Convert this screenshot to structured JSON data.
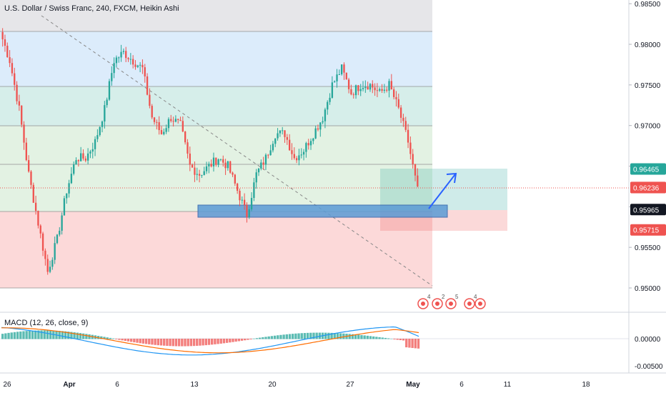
{
  "header": {
    "title": "U.S. Dollar / Swiss Franc, 240, FXCM, Heikin Ashi"
  },
  "macd": {
    "label": "MACD (12, 26, close, 9)"
  },
  "colors": {
    "up": "#26a69a",
    "down": "#ef5350",
    "macd_line": "#2196f3",
    "signal_line": "#ff6d00",
    "fib_gray": "#e6e6e9",
    "fib_blue": "#dcecfb",
    "fib_teal": "#d6eeea",
    "fib_green": "#e3f2e3",
    "fib_red": "#fcd9d9",
    "support_zone": "#5b9bd5"
  },
  "chart_data": [
    {
      "type": "candlestick",
      "title": "U.S. Dollar / Swiss Franc, 240, FXCM, Heikin Ashi",
      "x_ticks": [
        "26",
        "Apr",
        "6",
        "13",
        "20",
        "27",
        "May",
        "6",
        "11",
        "18"
      ],
      "ylim": [
        0.9475,
        0.9853
      ],
      "y_ticks": [
        0.95,
        0.955,
        0.96,
        0.965,
        0.97,
        0.975,
        0.98,
        0.985
      ],
      "y_tick_labels": [
        "0.95000",
        "0.95500",
        "0.96000",
        "0.96500",
        "0.97000",
        "0.97500",
        "0.98000",
        "0.98500"
      ],
      "price_markers": [
        {
          "label": "0.96465",
          "value": 0.96465,
          "color": "#26a69a"
        },
        {
          "label": "0.96237",
          "value": 0.96237,
          "color": "#ef5350"
        },
        {
          "label": "0.96236",
          "value": 0.96236,
          "color": "#ef5350"
        },
        {
          "label": "0.95965",
          "value": 0.95965,
          "color": "#131722"
        },
        {
          "label": "0.95715",
          "value": 0.95715,
          "color": "#ef5350"
        }
      ],
      "series_close_path": [
        0.9815,
        0.978,
        0.972,
        0.964,
        0.958,
        0.952,
        0.956,
        0.962,
        0.966,
        0.966,
        0.968,
        0.972,
        0.978,
        0.979,
        0.978,
        0.977,
        0.971,
        0.969,
        0.971,
        0.97,
        0.965,
        0.964,
        0.965,
        0.966,
        0.965,
        0.962,
        0.959,
        0.964,
        0.966,
        0.969,
        0.969,
        0.966,
        0.967,
        0.969,
        0.971,
        0.975,
        0.977,
        0.974,
        0.975,
        0.975,
        0.974,
        0.975,
        0.972,
        0.968,
        0.962
      ]
    },
    {
      "type": "line",
      "title": "MACD (12, 26, close, 9)",
      "y_ticks": [
        0.0,
        -0.005
      ],
      "y_tick_labels": [
        "0.00000",
        "-0.00500"
      ]
    }
  ]
}
